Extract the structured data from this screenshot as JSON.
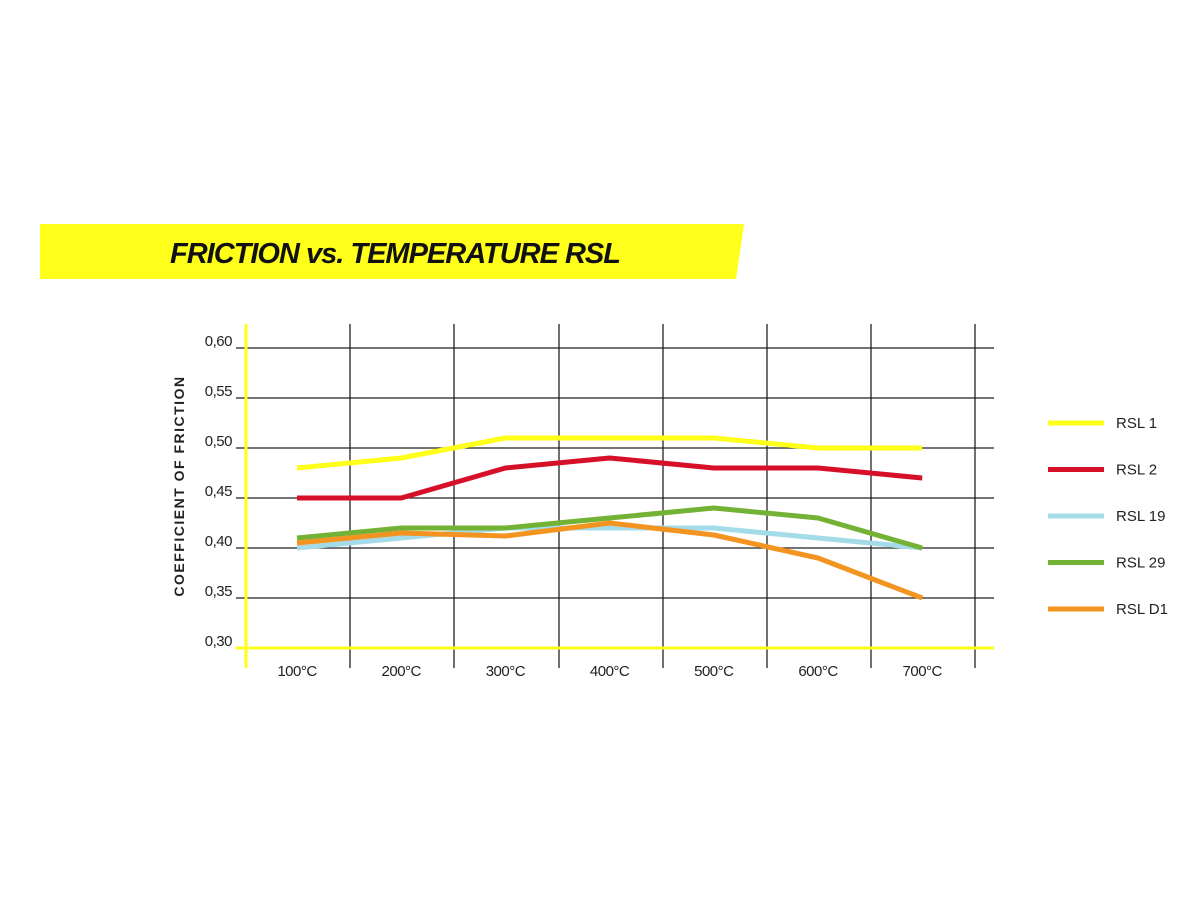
{
  "chart_data": {
    "type": "line",
    "title": "FRICTION vs. TEMPERATURE RSL",
    "xlabel": "",
    "ylabel": "COEFFICIENT OF FRICTION",
    "categories": [
      "100°C",
      "200°C",
      "300°C",
      "400°C",
      "500°C",
      "600°C",
      "700°C"
    ],
    "yticks": [
      "0,30",
      "0,35",
      "0,40",
      "0,45",
      "0,50",
      "0,55",
      "0,60"
    ],
    "ylim": [
      0.3,
      0.6
    ],
    "grid": true,
    "legend_position": "right",
    "colors": {
      "title_band": "#ffff1a",
      "axis": "#ffff1a",
      "grid": "#222222"
    },
    "series": [
      {
        "name": "RSL 1",
        "color": "#ffff1a",
        "values": [
          0.48,
          0.49,
          0.51,
          0.51,
          0.51,
          0.5,
          0.5
        ]
      },
      {
        "name": "RSL 2",
        "color": "#d7102a",
        "values": [
          0.45,
          0.45,
          0.48,
          0.49,
          0.48,
          0.48,
          0.47
        ]
      },
      {
        "name": "RSL 19",
        "color": "#a4dbe8",
        "values": [
          0.4,
          0.41,
          0.42,
          0.42,
          0.42,
          0.41,
          0.4
        ]
      },
      {
        "name": "RSL 29",
        "color": "#74b236",
        "values": [
          0.41,
          0.42,
          0.42,
          0.43,
          0.44,
          0.43,
          0.4
        ]
      },
      {
        "name": "RSL D1",
        "color": "#f39320",
        "values": [
          0.405,
          0.415,
          0.412,
          0.425,
          0.413,
          0.39,
          0.35
        ]
      }
    ]
  }
}
